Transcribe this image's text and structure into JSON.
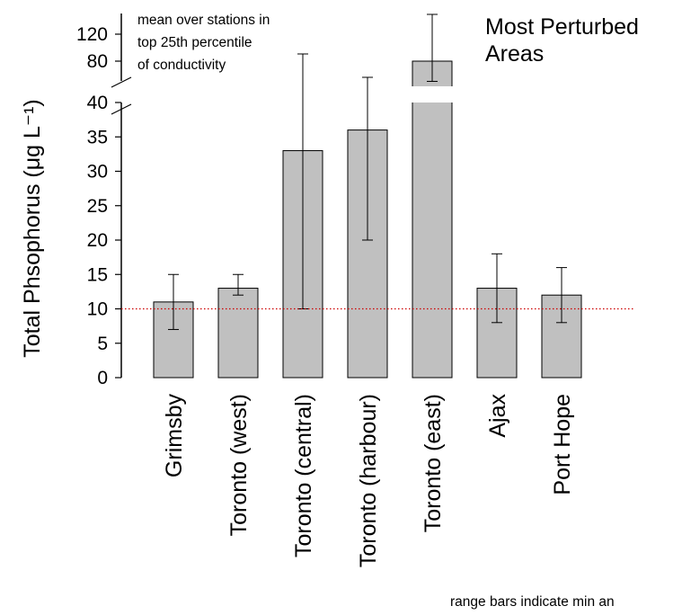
{
  "chart_data": {
    "type": "bar",
    "title": "Most Perturbed Areas",
    "ylabel": "Total Phsophorus (μg L⁻¹)",
    "note_top": [
      "mean over stations in",
      "top 25th percentile",
      "of conductivity"
    ],
    "note_bottom": "range bars indicate min an",
    "categories": [
      "Grimsby",
      "Toronto (west)",
      "Toronto (central)",
      "Toronto (harbour)",
      "Toronto (east)",
      "Ajax",
      "Port Hope"
    ],
    "values": [
      11,
      13,
      33,
      36,
      80,
      13,
      12
    ],
    "min": [
      7,
      12,
      10,
      20,
      50,
      8,
      8
    ],
    "max": [
      15,
      15,
      90,
      60,
      140,
      18,
      16
    ],
    "ylim": [
      0,
      140
    ],
    "axis_break": {
      "lower": [
        0,
        40
      ],
      "upper": [
        40,
        140
      ]
    },
    "yticks_lower": [
      0,
      5,
      10,
      15,
      20,
      25,
      30,
      35,
      40
    ],
    "yticks_upper": [
      80,
      120
    ],
    "reference_line": {
      "value": 10,
      "color": "#cc0000",
      "style": "dotted"
    },
    "bar_color": "#c0c0c0",
    "grid": false,
    "legend": "none"
  }
}
